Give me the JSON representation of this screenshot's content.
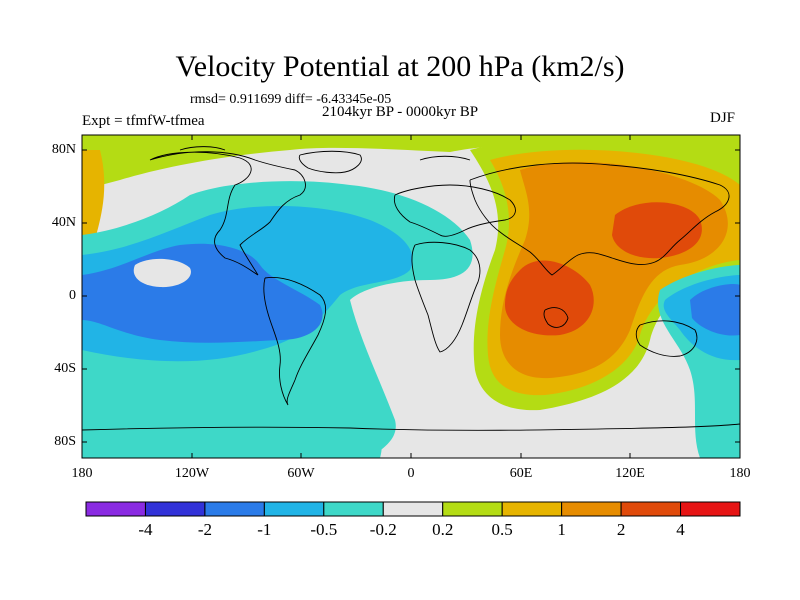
{
  "header": {
    "title": "Velocity Potential at 200 hPa (km2/s)",
    "stats": "rmsd= 0.911699 diff= -6.43345e-05",
    "period": "2104kyr BP - 0000kyr BP",
    "experiment": "Expt = tfmfW-tfmea",
    "season": "DJF"
  },
  "axes": {
    "lat_labels": [
      "80N",
      "40N",
      "0",
      "40S",
      "80S"
    ],
    "lon_labels": [
      "180",
      "120W",
      "60W",
      "0",
      "60E",
      "120E",
      "180"
    ]
  },
  "colorbar": {
    "labels": [
      "-4",
      "-2",
      "-1",
      "-0.5",
      "-0.2",
      "0.2",
      "0.5",
      "1",
      "2",
      "4"
    ],
    "colors": [
      "#8a2be2",
      "#3232d8",
      "#2b7be8",
      "#21b4e6",
      "#3ed8c8",
      "#e6e6e6",
      "#b4dc14",
      "#e6b400",
      "#e68c00",
      "#e04a0a",
      "#e61414"
    ]
  },
  "map_colors": {
    "background": "#e6e6e6",
    "coastline": "#000000"
  }
}
